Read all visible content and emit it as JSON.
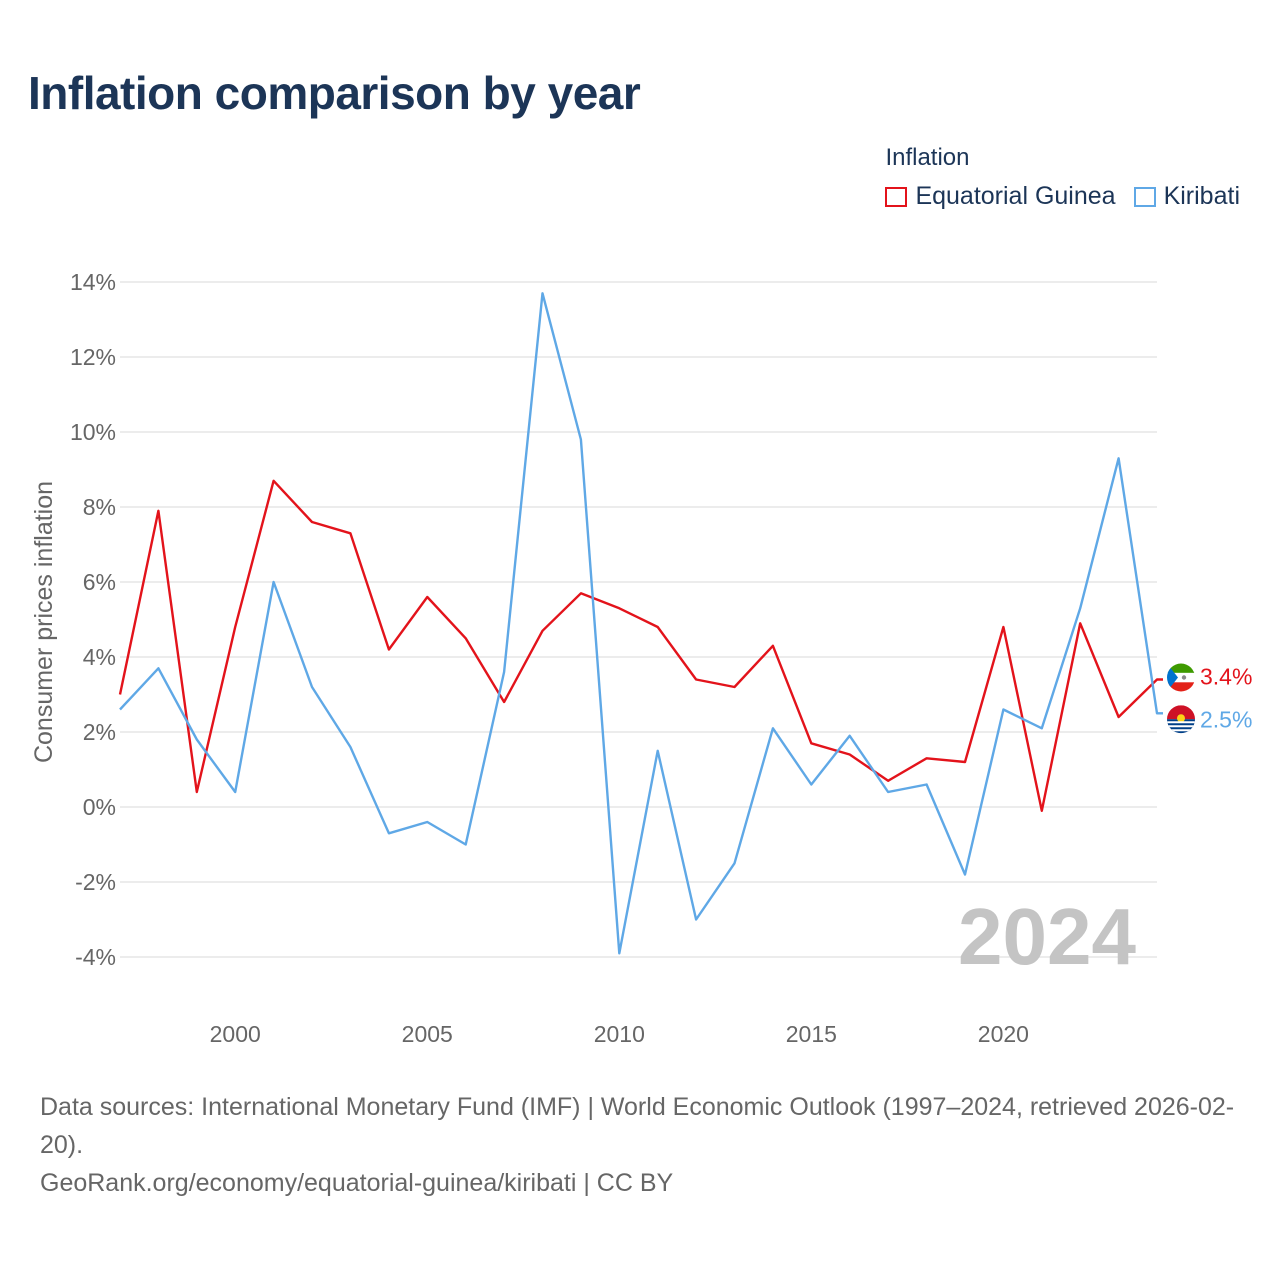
{
  "title": "Inflation comparison by year",
  "legend": {
    "title": "Inflation",
    "items": [
      {
        "label": "Equatorial Guinea",
        "color": "#e3131b"
      },
      {
        "label": "Kiribati",
        "color": "#5fa8e6"
      }
    ]
  },
  "year_watermark": "2024",
  "end_labels": {
    "equatorial_guinea": "3.4%",
    "kiribati": "2.5%"
  },
  "footer": {
    "line1": "Data sources: International Monetary Fund (IMF) | World Economic Outlook (1997–2024, retrieved 2026-02-20).",
    "line2": "GeoRank.org/economy/equatorial-guinea/kiribati | CC BY"
  },
  "chart_data": {
    "type": "line",
    "title": "Inflation comparison by year",
    "xlabel": "",
    "ylabel": "Consumer prices inflation",
    "x": [
      1997,
      1998,
      1999,
      2000,
      2001,
      2002,
      2003,
      2004,
      2005,
      2006,
      2007,
      2008,
      2009,
      2010,
      2011,
      2012,
      2013,
      2014,
      2015,
      2016,
      2017,
      2018,
      2019,
      2020,
      2021,
      2022,
      2023,
      2024
    ],
    "xlim": [
      1997,
      2024
    ],
    "ylim": [
      -4,
      14
    ],
    "x_ticks": [
      2000,
      2005,
      2010,
      2015,
      2020
    ],
    "y_ticks": [
      -4,
      -2,
      0,
      2,
      4,
      6,
      8,
      10,
      12,
      14
    ],
    "y_tick_labels": [
      "-4%",
      "-2%",
      "0%",
      "2%",
      "4%",
      "6%",
      "8%",
      "10%",
      "12%",
      "14%"
    ],
    "grid": true,
    "legend_position": "top-right",
    "series": [
      {
        "name": "Equatorial Guinea",
        "color": "#e3131b",
        "values": [
          3.0,
          7.9,
          0.4,
          4.8,
          8.7,
          7.6,
          7.3,
          4.2,
          5.6,
          4.5,
          2.8,
          4.7,
          5.7,
          5.3,
          4.8,
          3.4,
          3.2,
          4.3,
          1.7,
          1.4,
          0.7,
          1.3,
          1.2,
          4.8,
          -0.1,
          4.9,
          2.4,
          3.4
        ]
      },
      {
        "name": "Kiribati",
        "color": "#5fa8e6",
        "values": [
          2.6,
          3.7,
          1.8,
          0.4,
          6.0,
          3.2,
          1.6,
          -0.7,
          -0.4,
          -1.0,
          3.6,
          13.7,
          9.8,
          -3.9,
          1.5,
          -3.0,
          -1.5,
          2.1,
          0.6,
          1.9,
          0.4,
          0.6,
          -1.8,
          2.6,
          2.1,
          5.3,
          9.3,
          2.5
        ]
      }
    ]
  }
}
